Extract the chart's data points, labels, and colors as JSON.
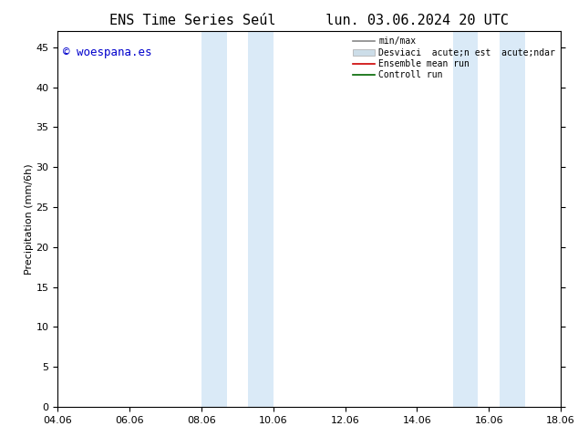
{
  "title": "ENS Time Series Seúl",
  "title2": "lun. 03.06.2024 20 UTC",
  "ylabel": "Precipitation (mm/6h)",
  "watermark": "© woespana.es",
  "watermark_color": "#0000cc",
  "background_color": "#ffffff",
  "plot_bg_color": "#ffffff",
  "ylim": [
    0,
    47
  ],
  "yticks": [
    0,
    5,
    10,
    15,
    20,
    25,
    30,
    35,
    40,
    45
  ],
  "xlim_start": 0,
  "xlim_end": 14,
  "xtick_labels": [
    "04.06",
    "06.06",
    "08.06",
    "10.06",
    "12.06",
    "14.06",
    "16.06",
    "18.06"
  ],
  "xtick_positions": [
    0,
    2,
    4,
    6,
    8,
    10,
    12,
    14
  ],
  "blue_bands": [
    {
      "x_start": 4.0,
      "x_end": 4.7,
      "x_start2": 5.3,
      "x_end2": 6.0
    },
    {
      "x_start": 11.0,
      "x_end": 11.7,
      "x_start2": 12.3,
      "x_end2": 13.0
    }
  ],
  "blue_band_color": "#daeaf7",
  "legend_labels": [
    "min/max",
    "Desviaci acute;n est acute;ndar",
    "Ensemble mean run",
    "Controll run"
  ],
  "title_fontsize": 11,
  "title2_fontsize": 11,
  "axis_fontsize": 8,
  "tick_fontsize": 8,
  "watermark_fontsize": 9,
  "legend_fontsize": 7
}
